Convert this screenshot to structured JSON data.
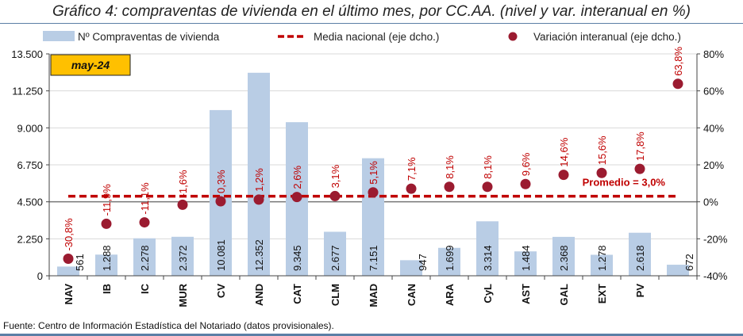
{
  "chart_data": {
    "type": "bar",
    "title": "Gráfico 4: compraventas de vivienda en el último mes, por CC.AA. (nivel y var. interanual en %)",
    "period_tag": "may-24",
    "categories": [
      "NAV",
      "IB",
      "IC",
      "MUR",
      "CV",
      "AND",
      "CAT",
      "CLM",
      "MAD",
      "CAN",
      "ARA",
      "CyL",
      "AST",
      "GAL",
      "EXT",
      "PV",
      ""
    ],
    "series": [
      {
        "name": "Nº Compraventas de vivienda",
        "axis": "left",
        "type": "bar",
        "color": "#b9cde5",
        "values": [
          561,
          1288,
          2278,
          2372,
          10081,
          12352,
          9345,
          2677,
          7151,
          947,
          1699,
          3314,
          1484,
          2368,
          1278,
          2618,
          672
        ],
        "labels": [
          "561",
          "1.288",
          "2.278",
          "2.372",
          "10.081",
          "12.352",
          "9.345",
          "2.677",
          "7.151",
          "947",
          "1.699",
          "3.314",
          "1.484",
          "2.368",
          "1.278",
          "2.618",
          "672"
        ]
      },
      {
        "name": "Variación interanual (eje dcho.)",
        "axis": "right",
        "type": "scatter",
        "color": "#9b1b30",
        "values": [
          -30.8,
          -11.9,
          -11.1,
          -1.6,
          0.3,
          1.2,
          2.6,
          3.1,
          5.1,
          7.1,
          8.1,
          8.1,
          9.6,
          14.6,
          15.6,
          17.8,
          63.8
        ],
        "labels": [
          "-30,8%",
          "-11,9%",
          "-11,1%",
          "-1,6%",
          "0,3%",
          "1,2%",
          "2,6%",
          "3,1%",
          "5,1%",
          "7,1%",
          "8,1%",
          "8,1%",
          "9,6%",
          "14,6%",
          "15,6%",
          "17,8%",
          "63,8%"
        ]
      },
      {
        "name": "Media nacional (eje dcho.)",
        "axis": "right",
        "type": "line",
        "style": "dashed",
        "color": "#c00000",
        "value": 3.0
      }
    ],
    "annotation": "Promedio = 3,0%",
    "left_axis": {
      "ylim": [
        0,
        13500
      ],
      "ticks": [
        0,
        2250,
        4500,
        6750,
        9000,
        11250,
        13500
      ],
      "tick_labels": [
        "0",
        "2.250",
        "4.500",
        "6.750",
        "9.000",
        "11.250",
        "13.500"
      ]
    },
    "right_axis": {
      "ylim": [
        -40,
        80
      ],
      "ticks": [
        -40,
        -20,
        0,
        20,
        40,
        60,
        80
      ],
      "tick_labels": [
        "-40%",
        "-20%",
        "0%",
        "20%",
        "40%",
        "60%",
        "80%"
      ]
    },
    "grid": true,
    "legend_position": "top"
  },
  "source": "Fuente: Centro de Información Estadística del Notariado (datos provisionales)."
}
